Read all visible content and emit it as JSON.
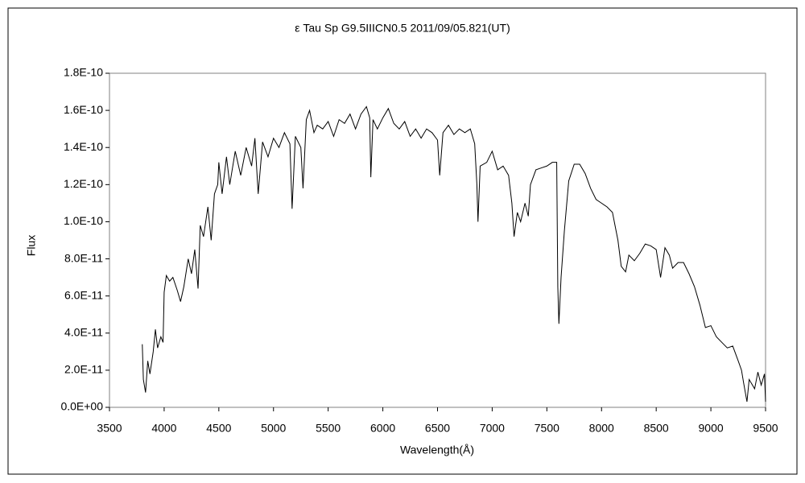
{
  "chart_data": {
    "type": "line",
    "title": "ε Tau  Sp G9.5IIICN0.5  2011/09/05.821(UT)",
    "x_label": "Wavelength(Å)",
    "y_label": "Flux",
    "xlim": [
      3500,
      9500
    ],
    "xticks": [
      3500,
      4000,
      4500,
      5000,
      5500,
      6000,
      6500,
      7000,
      7500,
      8000,
      8500,
      9000,
      9500
    ],
    "ylim": [
      0,
      1.8e-10
    ],
    "yticks": [
      {
        "value": 0,
        "label": "0.0E+00"
      },
      {
        "value": 2e-11,
        "label": "2.0E-11"
      },
      {
        "value": 4e-11,
        "label": "4.0E-11"
      },
      {
        "value": 6e-11,
        "label": "6.0E-11"
      },
      {
        "value": 8e-11,
        "label": "8.0E-11"
      },
      {
        "value": 1e-10,
        "label": "1.0E-10"
      },
      {
        "value": 1.2e-10,
        "label": "1.2E-10"
      },
      {
        "value": 1.4e-10,
        "label": "1.4E-10"
      },
      {
        "value": 1.6e-10,
        "label": "1.6E-10"
      },
      {
        "value": 1.8e-10,
        "label": "1.8E-10"
      }
    ],
    "grid": false,
    "color": "#000000",
    "x": [
      3800,
      3810,
      3830,
      3850,
      3870,
      3900,
      3920,
      3940,
      3970,
      3990,
      4000,
      4020,
      4050,
      4080,
      4120,
      4150,
      4180,
      4220,
      4250,
      4280,
      4310,
      4330,
      4360,
      4400,
      4430,
      4460,
      4490,
      4500,
      4530,
      4570,
      4600,
      4650,
      4700,
      4750,
      4800,
      4830,
      4860,
      4900,
      4950,
      5000,
      5050,
      5100,
      5150,
      5170,
      5200,
      5250,
      5270,
      5300,
      5330,
      5370,
      5400,
      5450,
      5500,
      5550,
      5600,
      5650,
      5700,
      5750,
      5800,
      5850,
      5880,
      5890,
      5910,
      5950,
      6000,
      6050,
      6100,
      6150,
      6200,
      6250,
      6300,
      6350,
      6400,
      6450,
      6500,
      6520,
      6550,
      6600,
      6650,
      6700,
      6750,
      6800,
      6840,
      6860,
      6870,
      6890,
      6950,
      7000,
      7050,
      7100,
      7150,
      7180,
      7200,
      7230,
      7260,
      7300,
      7330,
      7350,
      7400,
      7450,
      7500,
      7550,
      7590,
      7600,
      7610,
      7630,
      7660,
      7700,
      7750,
      7800,
      7850,
      7900,
      7950,
      8000,
      8050,
      8100,
      8150,
      8180,
      8220,
      8250,
      8300,
      8350,
      8400,
      8450,
      8500,
      8540,
      8580,
      8620,
      8650,
      8700,
      8750,
      8800,
      8850,
      8900,
      8950,
      9000,
      9050,
      9100,
      9150,
      9200,
      9250,
      9280,
      9300,
      9330,
      9350,
      9400,
      9430,
      9460,
      9490,
      9500
    ],
    "values": [
      3.4e-11,
      1.5e-11,
      8e-12,
      2.5e-11,
      1.8e-11,
      3e-11,
      4.2e-11,
      3.2e-11,
      3.8e-11,
      3.5e-11,
      6.2e-11,
      7.1e-11,
      6.8e-11,
      7e-11,
      6.3e-11,
      5.7e-11,
      6.5e-11,
      8e-11,
      7.2e-11,
      8.5e-11,
      6.4e-11,
      9.8e-11,
      9.2e-11,
      1.08e-10,
      9e-11,
      1.15e-10,
      1.2e-10,
      1.32e-10,
      1.15e-10,
      1.35e-10,
      1.2e-10,
      1.38e-10,
      1.25e-10,
      1.4e-10,
      1.3e-10,
      1.45e-10,
      1.15e-10,
      1.43e-10,
      1.35e-10,
      1.45e-10,
      1.4e-10,
      1.48e-10,
      1.42e-10,
      1.07e-10,
      1.46e-10,
      1.4e-10,
      1.18e-10,
      1.55e-10,
      1.6e-10,
      1.48e-10,
      1.52e-10,
      1.5e-10,
      1.54e-10,
      1.46e-10,
      1.55e-10,
      1.53e-10,
      1.58e-10,
      1.5e-10,
      1.58e-10,
      1.62e-10,
      1.56e-10,
      1.24e-10,
      1.55e-10,
      1.5e-10,
      1.56e-10,
      1.61e-10,
      1.53e-10,
      1.5e-10,
      1.54e-10,
      1.46e-10,
      1.5e-10,
      1.45e-10,
      1.5e-10,
      1.48e-10,
      1.44e-10,
      1.25e-10,
      1.48e-10,
      1.52e-10,
      1.47e-10,
      1.5e-10,
      1.48e-10,
      1.5e-10,
      1.42e-10,
      1.2e-10,
      1e-10,
      1.3e-10,
      1.32e-10,
      1.38e-10,
      1.28e-10,
      1.3e-10,
      1.25e-10,
      1.1e-10,
      9.2e-11,
      1.05e-10,
      1e-10,
      1.1e-10,
      1.03e-10,
      1.2e-10,
      1.28e-10,
      1.29e-10,
      1.3e-10,
      1.32e-10,
      1.32e-10,
      6.5e-11,
      4.5e-11,
      7e-11,
      9.5e-11,
      1.22e-10,
      1.31e-10,
      1.31e-10,
      1.26e-10,
      1.18e-10,
      1.12e-10,
      1.1e-10,
      1.08e-10,
      1.05e-10,
      9e-11,
      7.6e-11,
      7.3e-11,
      8.2e-11,
      7.9e-11,
      8.3e-11,
      8.8e-11,
      8.7e-11,
      8.5e-11,
      7e-11,
      8.6e-11,
      8.2e-11,
      7.5e-11,
      7.8e-11,
      7.8e-11,
      7.2e-11,
      6.5e-11,
      5.5e-11,
      4.3e-11,
      4.4e-11,
      3.8e-11,
      3.5e-11,
      3.2e-11,
      3.3e-11,
      2.5e-11,
      2e-11,
      1.3e-11,
      3e-12,
      1.5e-11,
      1e-11,
      1.9e-11,
      1.2e-11,
      1.8e-11,
      3e-12
    ]
  }
}
